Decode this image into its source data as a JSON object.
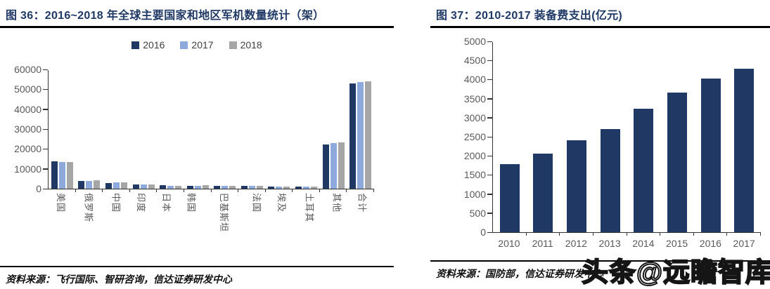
{
  "watermark": "头条@远瞻智库",
  "sources": {
    "figure36": "资料来源：飞行国际、智研咨询，信达证券研发中心",
    "figure37": "资料来源：国防部，信达证券研发中心"
  },
  "chart_data": [
    {
      "type": "bar",
      "title": "图 36：2016~2018 年全球主要国家和地区军机数量统计（架）",
      "categories": [
        "美国",
        "俄罗斯",
        "中国",
        "印度",
        "日本",
        "韩国",
        "巴基斯坦",
        "法国",
        "埃及",
        "土耳其",
        "其他",
        "合计"
      ],
      "series": [
        {
          "name": "2016",
          "color": "#1f3864",
          "values": [
            13800,
            3800,
            2960,
            2100,
            1590,
            1480,
            1340,
            1300,
            1130,
            1020,
            22400,
            52900
          ]
        },
        {
          "name": "2017",
          "color": "#8ea9db",
          "values": [
            13400,
            3910,
            3190,
            2190,
            1510,
            1560,
            1360,
            1260,
            1130,
            1060,
            23000,
            53600
          ]
        },
        {
          "name": "2018",
          "color": "#a6a6a6",
          "values": [
            13400,
            4080,
            3190,
            2080,
            1510,
            1590,
            1360,
            1250,
            1090,
            1060,
            23400,
            54100
          ]
        }
      ],
      "ylim": [
        0,
        60000
      ],
      "ytick_step": 10000,
      "xlabel": "",
      "ylabel": "",
      "legend_position": "top",
      "grid": false
    },
    {
      "type": "bar",
      "title": "图 37：2010-2017 装备费支出(亿元)",
      "categories": [
        "2010",
        "2011",
        "2012",
        "2013",
        "2014",
        "2015",
        "2016",
        "2017"
      ],
      "series": [
        {
          "name": "装备费",
          "color": "#1f3864",
          "values": [
            1780,
            2050,
            2400,
            2700,
            3230,
            3660,
            4030,
            4290
          ]
        }
      ],
      "ylim": [
        0,
        5000
      ],
      "ytick_step": 500,
      "xlabel": "",
      "ylabel": "",
      "legend_position": "none",
      "grid": false
    }
  ]
}
